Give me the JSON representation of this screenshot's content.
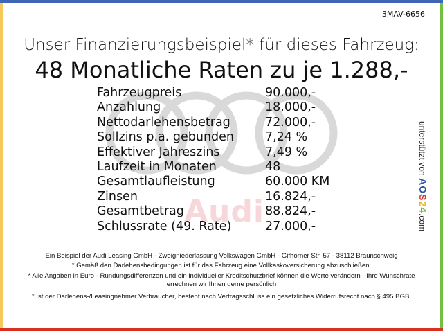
{
  "reference_code": "3MAV-6656",
  "headline": "Unser Finanzierungsbeispiel* für dieses Fahrzeug:",
  "rate_headline": "48 Monatliche Raten zu je 1.288,-",
  "watermark_brand": "Audi",
  "colors": {
    "top": "#3f66b4",
    "left": "#f7c95c",
    "right": "#72c043",
    "bottom": "#d6321f"
  },
  "table": [
    {
      "label": "Fahrzeugpreis",
      "value": "90.000,-"
    },
    {
      "label": "Anzahlung",
      "value": "18.000,-"
    },
    {
      "label": "Nettodarlehensbetrag",
      "value": "72.000,-"
    },
    {
      "label": "Sollzins p.a. gebunden",
      "value": "7,24 %"
    },
    {
      "label": "Effektiver Jahreszins",
      "value": "7,49 %"
    },
    {
      "label": "Laufzeit in Monaten",
      "value": "48"
    },
    {
      "label": "Gesamtlaufleistung",
      "value": "60.000 KM"
    },
    {
      "label": "Zinsen",
      "value": "16.824,-"
    },
    {
      "label": "Gesamtbetrag",
      "value": "88.824,-"
    },
    {
      "label": "Schlussrate (49. Rate)",
      "value": "27.000,-"
    }
  ],
  "sidebar": {
    "prefix": "unterstützt von",
    "logo": [
      "A",
      "O",
      "S",
      "2",
      "4"
    ],
    "suffix": ".com"
  },
  "footnotes": [
    "Ein Beispiel der Audi Leasing GmbH - Zweigniederlassung Volkswagen GmbH - Gifhorner Str. 57 - 38112 Braunschweig",
    "* Gemäß den Darlehensbedingungen ist für das Fahrzeug eine Vollkaskoversicherung abzuschließen.",
    "* Alle Angaben in Euro - Rundungsdifferenzen und ein individueller Kreditschutzbrief können die Werte verändern - Ihre Wunschrate errechnen wir Ihnen gerne persönlich",
    "* Ist der Darlehens-/Leasingnehmer Verbraucher, besteht nach Vertragsschluss ein gesetzliches Widerrufsrecht nach § 495 BGB."
  ]
}
